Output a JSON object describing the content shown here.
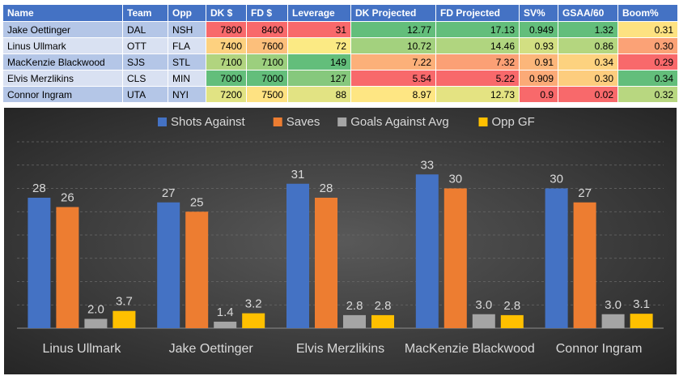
{
  "table": {
    "headers": [
      "Name",
      "Team",
      "Opp",
      "DK $",
      "FD $",
      "Leverage",
      "DK Projected",
      "FD Projected",
      "SV%",
      "GSAA/60",
      "Boom%"
    ],
    "rows": [
      {
        "name": "Jake Oettinger",
        "team": "DAL",
        "opp": "NSH",
        "dk": "7800",
        "fd": "8400",
        "leverage": "31",
        "dk_proj": "12.77",
        "fd_proj": "17.13",
        "sv": "0.949",
        "gsaa": "1.32",
        "boom": "0.31",
        "colors": {
          "dk": "#f8696b",
          "fd": "#f8696b",
          "leverage": "#f8696b",
          "dk_proj": "#63be7b",
          "fd_proj": "#63be7b",
          "sv": "#63be7b",
          "gsaa": "#63be7b",
          "boom": "#fde281"
        }
      },
      {
        "name": "Linus Ullmark",
        "team": "OTT",
        "opp": "FLA",
        "dk": "7400",
        "fd": "7600",
        "leverage": "72",
        "dk_proj": "10.72",
        "fd_proj": "14.46",
        "sv": "0.93",
        "gsaa": "0.86",
        "boom": "0.30",
        "colors": {
          "dk": "#fdd17f",
          "fd": "#fcbf7b",
          "leverage": "#fbea84",
          "dk_proj": "#a3d17e",
          "fd_proj": "#b0d57f",
          "sv": "#d2df82",
          "gsaa": "#b4d67f",
          "boom": "#fba276"
        }
      },
      {
        "name": "MacKenzie Blackwood",
        "team": "SJS",
        "opp": "STL",
        "dk": "7100",
        "fd": "7100",
        "leverage": "149",
        "dk_proj": "7.22",
        "fd_proj": "7.32",
        "sv": "0.91",
        "gsaa": "0.34",
        "boom": "0.29",
        "colors": {
          "dk": "#b1d47f",
          "fd": "#9ccf7e",
          "leverage": "#63be7b",
          "dk_proj": "#fcb079",
          "fd_proj": "#fba075",
          "sv": "#fcb67a",
          "gsaa": "#fdd27f",
          "boom": "#f8696b"
        }
      },
      {
        "name": "Elvis Merzlikins",
        "team": "CLS",
        "opp": "MIN",
        "dk": "7000",
        "fd": "7000",
        "leverage": "127",
        "dk_proj": "5.54",
        "fd_proj": "5.22",
        "sv": "0.909",
        "gsaa": "0.30",
        "boom": "0.34",
        "colors": {
          "dk": "#63be7b",
          "fd": "#63be7b",
          "leverage": "#86c87d",
          "dk_proj": "#f8696b",
          "fd_proj": "#f8696b",
          "sv": "#fbaa77",
          "gsaa": "#fdcd7e",
          "boom": "#63be7b"
        }
      },
      {
        "name": "Connor Ingram",
        "team": "UTA",
        "opp": "NYI",
        "dk": "7200",
        "fd": "7500",
        "leverage": "88",
        "dk_proj": "8.97",
        "fd_proj": "12.73",
        "sv": "0.9",
        "gsaa": "0.02",
        "boom": "0.32",
        "colors": {
          "dk": "#e1e383",
          "fd": "#fee282",
          "leverage": "#e2e383",
          "dk_proj": "#fee683",
          "fd_proj": "#e4e382",
          "sv": "#f8696b",
          "gsaa": "#f8696b",
          "boom": "#b8d780"
        }
      }
    ]
  },
  "chart_data": {
    "type": "bar",
    "categories": [
      "Linus Ullmark",
      "Jake Oettinger",
      "Elvis Merzlikins",
      "MacKenzie Blackwood",
      "Connor Ingram"
    ],
    "series": [
      {
        "name": "Shots Against",
        "values": [
          28,
          27,
          31,
          33,
          30
        ],
        "labels": [
          "28",
          "27",
          "31",
          "33",
          "30"
        ],
        "color": "#4472c4"
      },
      {
        "name": "Saves",
        "values": [
          26,
          25,
          28,
          30,
          27
        ],
        "labels": [
          "26",
          "25",
          "28",
          "30",
          "27"
        ],
        "color": "#ed7d31"
      },
      {
        "name": "Goals Against Avg",
        "values": [
          2.0,
          1.4,
          2.8,
          3.0,
          3.0
        ],
        "labels": [
          "2.0",
          "1.4",
          "2.8",
          "3.0",
          "3.0"
        ],
        "color": "#a5a5a5"
      },
      {
        "name": "Opp GF",
        "values": [
          3.7,
          3.2,
          2.8,
          2.8,
          3.1
        ],
        "labels": [
          "3.7",
          "3.2",
          "2.8",
          "2.8",
          "3.1"
        ],
        "color": "#ffc000"
      }
    ],
    "ylim": [
      0,
      40
    ],
    "grid": true,
    "legend": "top",
    "title": "",
    "xlabel": "",
    "ylabel": ""
  },
  "colors": {
    "header_bg": "#4472c4",
    "row_name_odd": "#b4c6e7",
    "row_name_even": "#d9e1f2",
    "chart_bg_center": "#595959",
    "chart_bg_edge": "#262626"
  }
}
